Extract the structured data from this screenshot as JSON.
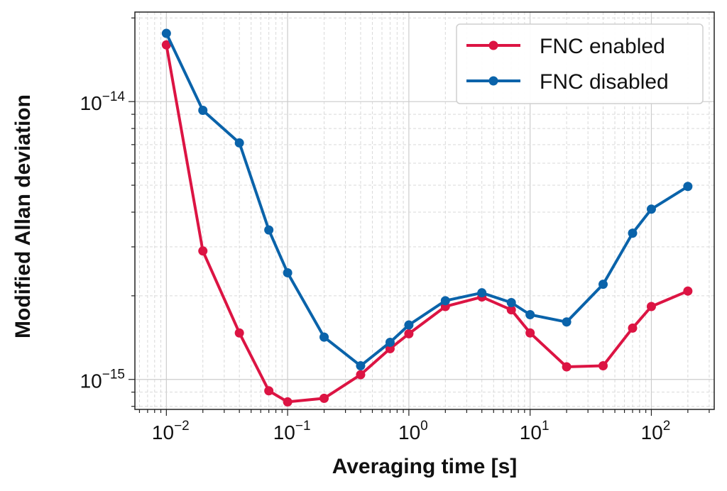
{
  "chart_data": {
    "type": "line",
    "title": "",
    "xlabel": "Averaging time [s]",
    "ylabel": "Modified Allan deviation",
    "xscale": "log",
    "yscale": "log",
    "xlim": [
      0.0055,
      330
    ],
    "ylim": [
      7.8e-16,
      2.1e-14
    ],
    "grid": true,
    "legend_position": "top-right",
    "x_ticks": [
      {
        "value": 0.01,
        "base": "10",
        "exp": "−2"
      },
      {
        "value": 0.1,
        "base": "10",
        "exp": "−1"
      },
      {
        "value": 1,
        "base": "10",
        "exp": "0"
      },
      {
        "value": 10,
        "base": "10",
        "exp": "1"
      },
      {
        "value": 100,
        "base": "10",
        "exp": "2"
      }
    ],
    "y_ticks": [
      {
        "value": 1e-15,
        "base": "10",
        "exp": "−15"
      },
      {
        "value": 1e-14,
        "base": "10",
        "exp": "−14"
      }
    ],
    "x": [
      0.01,
      0.02,
      0.04,
      0.07,
      0.1,
      0.2,
      0.4,
      0.7,
      1,
      2,
      4,
      7,
      10,
      20,
      40,
      70,
      100,
      200
    ],
    "series": [
      {
        "name": "FNC enabled",
        "color": "#dc1443",
        "values": [
          1.6e-14,
          2.9e-15,
          1.47e-15,
          9.1e-16,
          8.3e-16,
          8.55e-16,
          1.04e-15,
          1.29e-15,
          1.46e-15,
          1.83e-15,
          1.98e-15,
          1.78e-15,
          1.47e-15,
          1.11e-15,
          1.12e-15,
          1.53e-15,
          1.83e-15,
          2.08e-15
        ]
      },
      {
        "name": "FNC disabled",
        "color": "#0a63aa",
        "values": [
          1.76e-14,
          9.3e-15,
          7.1e-15,
          3.45e-15,
          2.42e-15,
          1.42e-15,
          1.12e-15,
          1.36e-15,
          1.57e-15,
          1.92e-15,
          2.05e-15,
          1.89e-15,
          1.71e-15,
          1.61e-15,
          2.2e-15,
          3.36e-15,
          4.1e-15,
          4.95e-15
        ]
      }
    ]
  }
}
